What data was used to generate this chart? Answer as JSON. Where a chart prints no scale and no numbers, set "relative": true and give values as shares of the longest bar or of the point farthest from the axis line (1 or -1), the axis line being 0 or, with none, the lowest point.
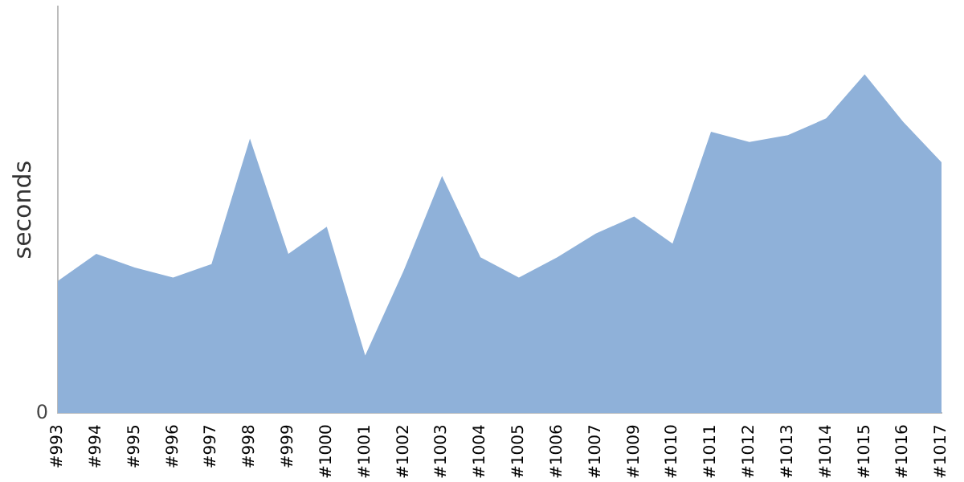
{
  "chart_data": {
    "type": "area",
    "relative": true,
    "ylabel": "seconds",
    "color": "#8fb1d9",
    "categories": [
      "#993",
      "#994",
      "#995",
      "#996",
      "#997",
      "#998",
      "#999",
      "#1000",
      "#1001",
      "#1002",
      "#1003",
      "#1004",
      "#1005",
      "#1006",
      "#1007",
      "#1009",
      "#1010",
      "#1011",
      "#1012",
      "#1013",
      "#1014",
      "#1015",
      "#1016",
      "#1017"
    ],
    "values": [
      0.39,
      0.47,
      0.43,
      0.4,
      0.44,
      0.81,
      0.47,
      0.55,
      0.17,
      0.42,
      0.7,
      0.46,
      0.4,
      0.46,
      0.53,
      0.58,
      0.5,
      0.83,
      0.8,
      0.82,
      0.87,
      1,
      0.86,
      0.74
    ],
    "annotations": [
      "0"
    ],
    "grid": false,
    "legend": false
  }
}
